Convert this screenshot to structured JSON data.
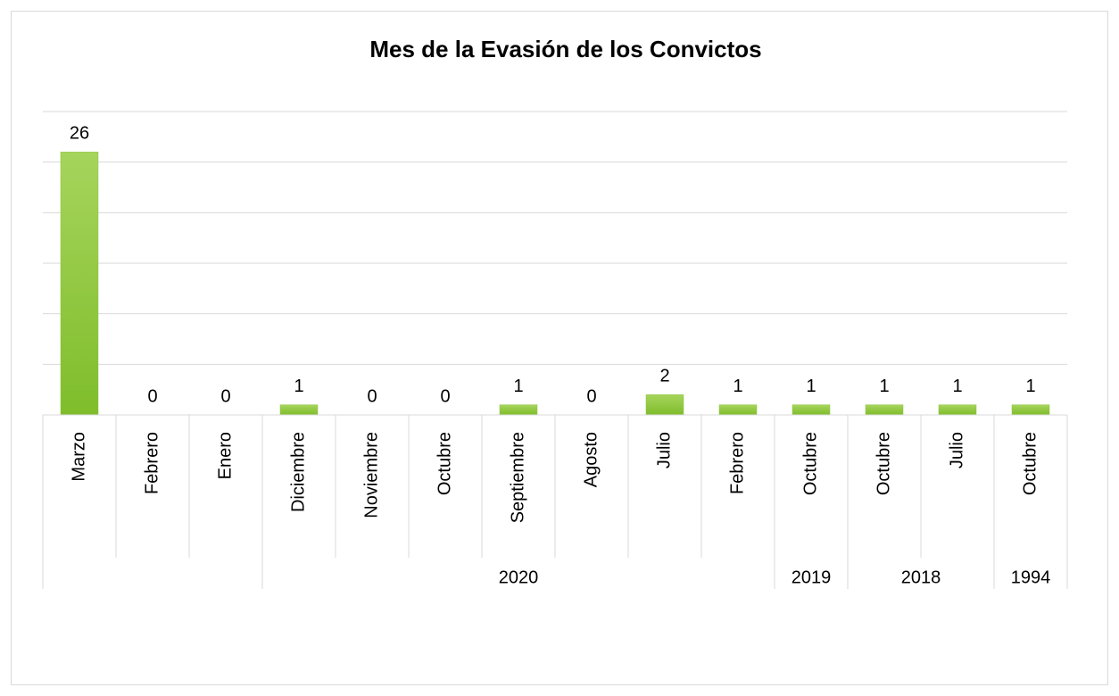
{
  "chart_data": {
    "type": "bar",
    "title": "Mes de la Evasión de los Convictos",
    "categories": [
      "Marzo",
      "Febrero",
      "Enero",
      "Diciembre",
      "Noviembre",
      "Octubre",
      "Septiembre",
      "Agosto",
      "Julio",
      "Febrero",
      "Octubre",
      "Octubre",
      "Julio",
      "Octubre"
    ],
    "values": [
      26,
      0,
      0,
      1,
      0,
      0,
      1,
      0,
      2,
      1,
      1,
      1,
      1,
      1
    ],
    "category_groups": [
      {
        "label": null,
        "count": 3
      },
      {
        "label": "2020",
        "count": 7
      },
      {
        "label": "2019",
        "count": 1
      },
      {
        "label": "2018",
        "count": 2
      },
      {
        "label": "1994",
        "count": 1
      }
    ],
    "color": "#8cc63e",
    "ylim": [
      0,
      30
    ],
    "yticks": [
      0,
      5,
      10,
      15,
      20,
      25,
      30
    ],
    "grid": true
  }
}
